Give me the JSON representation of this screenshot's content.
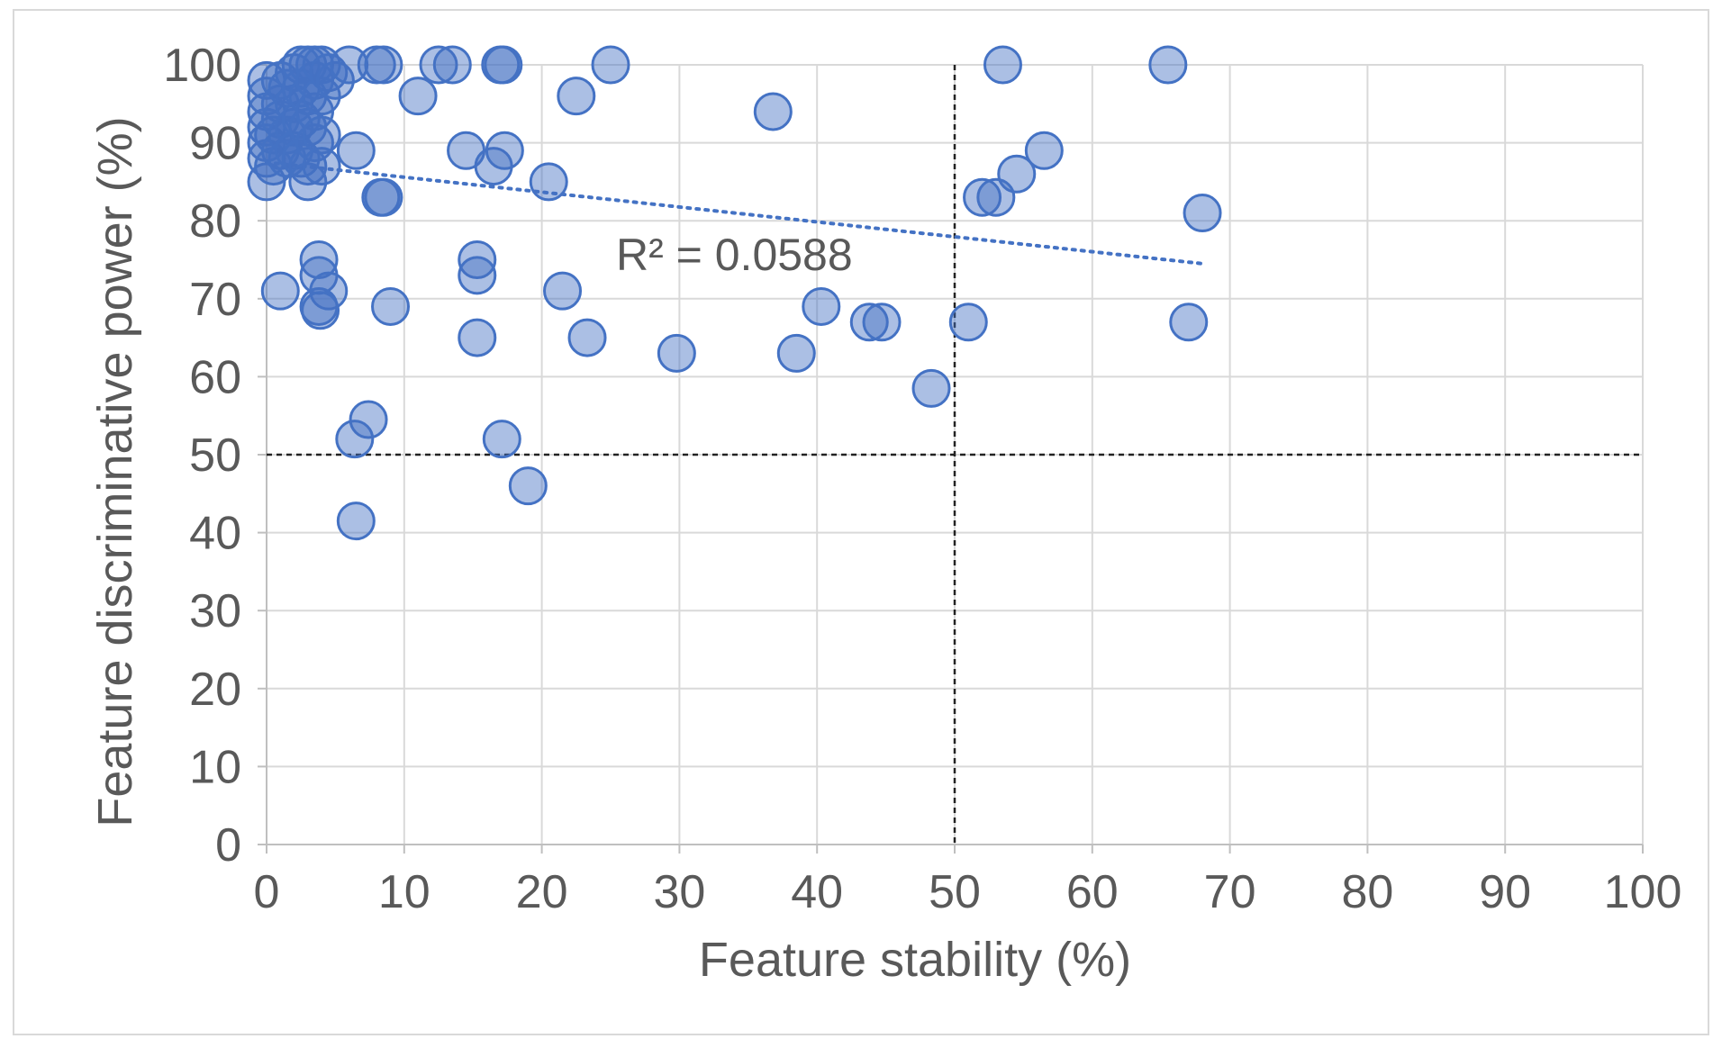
{
  "chart_data": {
    "type": "scatter",
    "xlabel": "Feature stability (%)",
    "ylabel": "Feature discriminative power (%)",
    "xlim": [
      0,
      100
    ],
    "ylim": [
      0,
      100
    ],
    "x_ticks": [
      "0",
      "10",
      "20",
      "30",
      "40",
      "50",
      "60",
      "70",
      "80",
      "90",
      "100"
    ],
    "y_ticks": [
      "0",
      "10",
      "20",
      "30",
      "40",
      "50",
      "60",
      "70",
      "80",
      "90",
      "100"
    ],
    "grid": true,
    "reference_lines": {
      "vertical_x": 50,
      "horizontal_y": 50
    },
    "trendline": {
      "type": "linear",
      "style": "dotted",
      "x_start": 0,
      "y_start": 87.5,
      "x_end": 68,
      "y_end": 74.5,
      "r2_label": "R² = 0.0588"
    },
    "marker_color": "#4472C4",
    "points": [
      {
        "x": 0,
        "y": 98
      },
      {
        "x": 0,
        "y": 96
      },
      {
        "x": 0,
        "y": 94
      },
      {
        "x": 0,
        "y": 92
      },
      {
        "x": 0,
        "y": 90
      },
      {
        "x": 0,
        "y": 88
      },
      {
        "x": 0,
        "y": 85
      },
      {
        "x": 0.5,
        "y": 91
      },
      {
        "x": 0.5,
        "y": 87
      },
      {
        "x": 1,
        "y": 98
      },
      {
        "x": 1,
        "y": 95
      },
      {
        "x": 1,
        "y": 93
      },
      {
        "x": 1,
        "y": 89
      },
      {
        "x": 1.5,
        "y": 97
      },
      {
        "x": 1.5,
        "y": 91
      },
      {
        "x": 1.5,
        "y": 88
      },
      {
        "x": 2,
        "y": 99
      },
      {
        "x": 2,
        "y": 95
      },
      {
        "x": 2,
        "y": 92
      },
      {
        "x": 2,
        "y": 89
      },
      {
        "x": 2.5,
        "y": 100
      },
      {
        "x": 2.5,
        "y": 97
      },
      {
        "x": 2.5,
        "y": 93
      },
      {
        "x": 2.5,
        "y": 88
      },
      {
        "x": 3,
        "y": 100
      },
      {
        "x": 3,
        "y": 96
      },
      {
        "x": 3,
        "y": 92
      },
      {
        "x": 3,
        "y": 87
      },
      {
        "x": 3,
        "y": 85
      },
      {
        "x": 3.5,
        "y": 100
      },
      {
        "x": 3.5,
        "y": 98
      },
      {
        "x": 3.5,
        "y": 94
      },
      {
        "x": 3.5,
        "y": 90
      },
      {
        "x": 4,
        "y": 100
      },
      {
        "x": 4,
        "y": 96
      },
      {
        "x": 4,
        "y": 91
      },
      {
        "x": 4,
        "y": 87
      },
      {
        "x": 4.5,
        "y": 99
      },
      {
        "x": 5,
        "y": 98
      },
      {
        "x": 6,
        "y": 100
      },
      {
        "x": 6.5,
        "y": 89
      },
      {
        "x": 8,
        "y": 100
      },
      {
        "x": 8.5,
        "y": 100
      },
      {
        "x": 8.3,
        "y": 83
      },
      {
        "x": 8.5,
        "y": 83
      },
      {
        "x": 11,
        "y": 96
      },
      {
        "x": 12.5,
        "y": 100
      },
      {
        "x": 13.5,
        "y": 100
      },
      {
        "x": 14.5,
        "y": 89
      },
      {
        "x": 16.5,
        "y": 87
      },
      {
        "x": 17,
        "y": 100
      },
      {
        "x": 17.2,
        "y": 100
      },
      {
        "x": 17.3,
        "y": 89
      },
      {
        "x": 20.5,
        "y": 85
      },
      {
        "x": 22.5,
        "y": 96
      },
      {
        "x": 25,
        "y": 100
      },
      {
        "x": 36.8,
        "y": 94
      },
      {
        "x": 53.5,
        "y": 100
      },
      {
        "x": 65.5,
        "y": 100
      },
      {
        "x": 56.5,
        "y": 89
      },
      {
        "x": 54.5,
        "y": 86
      },
      {
        "x": 52,
        "y": 83
      },
      {
        "x": 53,
        "y": 83
      },
      {
        "x": 68,
        "y": 81
      },
      {
        "x": 1,
        "y": 71
      },
      {
        "x": 3.8,
        "y": 75
      },
      {
        "x": 3.8,
        "y": 73
      },
      {
        "x": 4.5,
        "y": 71
      },
      {
        "x": 3.8,
        "y": 69
      },
      {
        "x": 3.9,
        "y": 68.5
      },
      {
        "x": 9,
        "y": 69
      },
      {
        "x": 15.3,
        "y": 75
      },
      {
        "x": 15.3,
        "y": 73
      },
      {
        "x": 15.3,
        "y": 65
      },
      {
        "x": 21.5,
        "y": 71
      },
      {
        "x": 23.3,
        "y": 65
      },
      {
        "x": 29.8,
        "y": 63
      },
      {
        "x": 38.5,
        "y": 63
      },
      {
        "x": 40.3,
        "y": 69
      },
      {
        "x": 43.8,
        "y": 67
      },
      {
        "x": 44.7,
        "y": 67
      },
      {
        "x": 48.3,
        "y": 58.5
      },
      {
        "x": 51,
        "y": 67
      },
      {
        "x": 67,
        "y": 67
      },
      {
        "x": 7.4,
        "y": 54.5
      },
      {
        "x": 6.4,
        "y": 52
      },
      {
        "x": 17.1,
        "y": 52
      },
      {
        "x": 19,
        "y": 46
      },
      {
        "x": 6.5,
        "y": 41.5
      }
    ]
  }
}
